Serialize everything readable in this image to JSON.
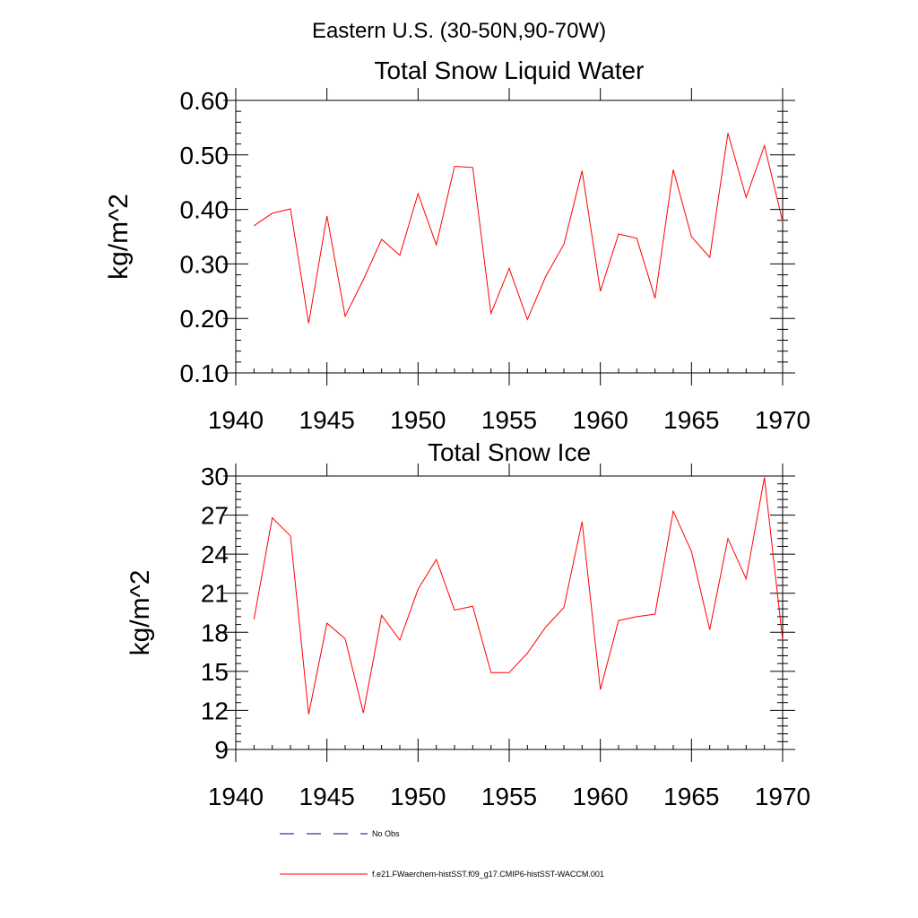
{
  "figure": {
    "title": "Eastern U.S. (30-50N,90-70W)"
  },
  "legend": {
    "items": [
      {
        "label": "No Obs",
        "style": "dashed",
        "color": "#000080"
      },
      {
        "label": "f.e21.FWaerchem-histSST.f09_g17.CMIP6-histSST-WACCM.001",
        "style": "solid",
        "color": "#ff0000"
      }
    ]
  },
  "chart_data": [
    {
      "type": "line",
      "title": "Total Snow Liquid Water",
      "xlabel": "",
      "ylabel": "kg/m^2",
      "xlim": [
        1940,
        1970
      ],
      "ylim": [
        0.1,
        0.6
      ],
      "xticks": [
        1940,
        1945,
        1950,
        1955,
        1960,
        1965,
        1970
      ],
      "xtick_labels": [
        "1940",
        "1945",
        "1950",
        "1955",
        "1960",
        "1965",
        "1970"
      ],
      "yticks": [
        0.1,
        0.2,
        0.3,
        0.4,
        0.5,
        0.6
      ],
      "ytick_labels": [
        "0.10",
        "0.20",
        "0.30",
        "0.40",
        "0.50",
        "0.60"
      ],
      "grid": false,
      "series": [
        {
          "color": "#ff0000",
          "x": [
            1941,
            1942,
            1943,
            1944,
            1945,
            1946,
            1947,
            1948,
            1949,
            1950,
            1951,
            1952,
            1953,
            1954,
            1955,
            1956,
            1957,
            1958,
            1959,
            1960,
            1961,
            1962,
            1963,
            1964,
            1965,
            1966,
            1967,
            1968,
            1969,
            1970
          ],
          "values": [
            0.37,
            0.393,
            0.401,
            0.191,
            0.388,
            0.204,
            0.271,
            0.345,
            0.316,
            0.429,
            0.335,
            0.479,
            0.477,
            0.209,
            0.292,
            0.198,
            0.277,
            0.336,
            0.471,
            0.25,
            0.355,
            0.347,
            0.237,
            0.473,
            0.35,
            0.312,
            0.54,
            0.422,
            0.517,
            0.378
          ]
        }
      ]
    },
    {
      "type": "line",
      "title": "Total Snow Ice",
      "xlabel": "",
      "ylabel": "kg/m^2",
      "xlim": [
        1940,
        1970
      ],
      "ylim": [
        9,
        30
      ],
      "xticks": [
        1940,
        1945,
        1950,
        1955,
        1960,
        1965,
        1970
      ],
      "xtick_labels": [
        "1940",
        "1945",
        "1950",
        "1955",
        "1960",
        "1965",
        "1970"
      ],
      "yticks": [
        9,
        12,
        15,
        18,
        21,
        24,
        27,
        30
      ],
      "ytick_labels": [
        "9",
        "12",
        "15",
        "18",
        "21",
        "24",
        "27",
        "30"
      ],
      "grid": false,
      "series": [
        {
          "color": "#ff0000",
          "x": [
            1941,
            1942,
            1943,
            1944,
            1945,
            1946,
            1947,
            1948,
            1949,
            1950,
            1951,
            1952,
            1953,
            1954,
            1955,
            1956,
            1957,
            1958,
            1959,
            1960,
            1961,
            1962,
            1963,
            1964,
            1965,
            1966,
            1967,
            1968,
            1969,
            1970
          ],
          "values": [
            19.0,
            26.8,
            25.4,
            11.7,
            18.7,
            17.5,
            11.8,
            19.3,
            17.4,
            21.3,
            23.6,
            19.7,
            20.0,
            14.9,
            14.9,
            16.4,
            18.4,
            19.9,
            26.5,
            13.6,
            18.9,
            19.2,
            19.4,
            27.3,
            24.2,
            18.2,
            25.2,
            22.1,
            29.9,
            17.4
          ]
        }
      ]
    }
  ]
}
